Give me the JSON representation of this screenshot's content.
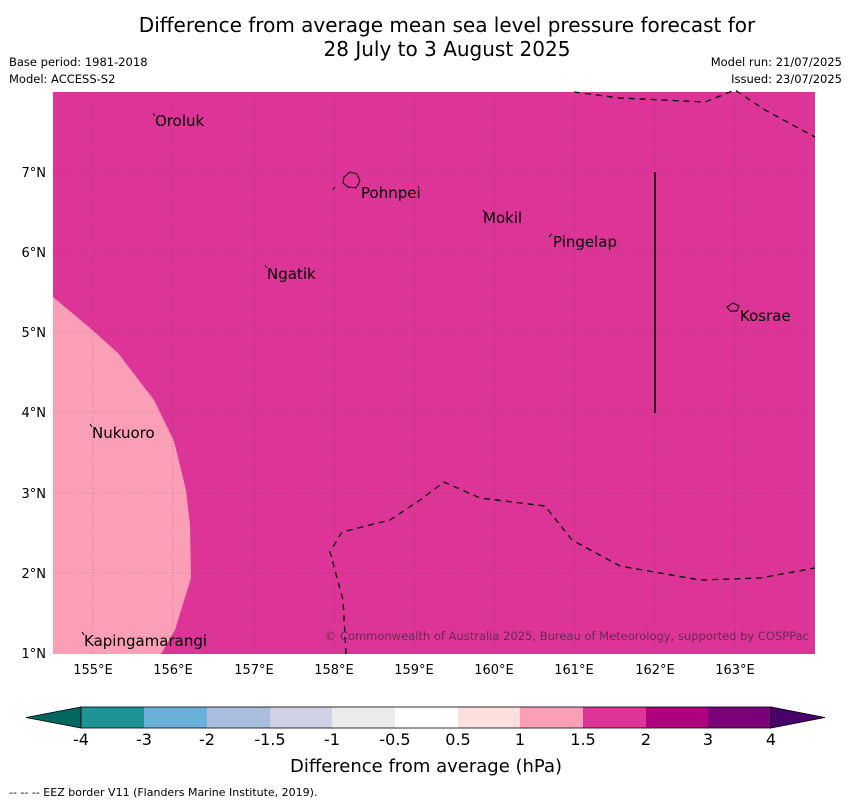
{
  "header": {
    "title_line1": "Difference from average mean sea level pressure forecast for",
    "title_line2": "28 July to 3 August 2025",
    "base_period": "Base period: 1981-2018",
    "model": "Model: ACCESS-S2",
    "model_run": "Model run: 21/07/2025",
    "issued": "Issued: 23/07/2025"
  },
  "map": {
    "lon_labels": [
      "155°E",
      "156°E",
      "157°E",
      "158°E",
      "159°E",
      "160°E",
      "161°E",
      "162°E",
      "163°E"
    ],
    "lat_labels": [
      "7°N",
      "6°N",
      "5°N",
      "4°N",
      "3°N",
      "2°N",
      "1°N"
    ],
    "places": {
      "oroluk": "Oroluk",
      "pohnpei": "Pohnpei",
      "mokil": "Mokil",
      "pingelap": "Pingelap",
      "ngatik": "Ngatik",
      "kosrae": "Kosrae",
      "nukuoro": "Nukuoro",
      "kapingamarangi": "Kapingamarangi"
    },
    "copyright": "© Commonwealth of Australia 2025, Bureau of Meteorology, supported by COSPPac",
    "fill_colors": {
      "band_1_5_to_2": "#dd3497",
      "band_1_to_1_5": "#fa9fb5"
    }
  },
  "colorbar": {
    "tick_labels": [
      "-4",
      "-3",
      "-2",
      "-1.5",
      "-1",
      "-0.5",
      "0.5",
      "1",
      "1.5",
      "2",
      "3",
      "4"
    ],
    "colors": [
      "#1d9496",
      "#6ab0d8",
      "#a9bddc",
      "#d0d1e6",
      "#ececec",
      "#ffffff",
      "#fde0dd",
      "#fa9fb5",
      "#dd3497",
      "#ae017e",
      "#7a0177"
    ],
    "under_color": "#01665e",
    "over_color": "#49006a",
    "label": "Difference from average (hPa)"
  },
  "footer": {
    "eez_note": "--  --  -- EEZ border V11 (Flanders Marine Institute, 2019)."
  }
}
